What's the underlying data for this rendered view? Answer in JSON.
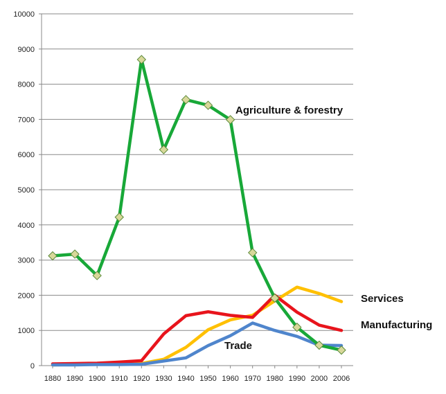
{
  "chart_data": {
    "type": "line",
    "title": "",
    "xlabel": "",
    "ylabel": "",
    "x": [
      "1880",
      "1890",
      "1900",
      "1910",
      "1920",
      "1930",
      "1940",
      "1950",
      "1960",
      "1970",
      "1980",
      "1990",
      "2000",
      "2006"
    ],
    "ylim": [
      0,
      10000
    ],
    "yticks": [
      0,
      1000,
      2000,
      3000,
      4000,
      5000,
      6000,
      7000,
      8000,
      9000,
      10000
    ],
    "grid": true,
    "series": [
      {
        "name": "Services",
        "color": "#FFC000",
        "markers": false,
        "values": [
          20,
          30,
          40,
          50,
          60,
          180,
          520,
          1020,
          1300,
          1430,
          1840,
          2230,
          2050,
          1820
        ]
      },
      {
        "name": "Manufacturing",
        "color": "#E8141C",
        "markers": false,
        "values": [
          50,
          60,
          70,
          100,
          140,
          900,
          1420,
          1530,
          1430,
          1370,
          2000,
          1520,
          1150,
          1000
        ]
      },
      {
        "name": "Trade",
        "color": "#4F85CC",
        "markers": false,
        "values": [
          20,
          20,
          30,
          30,
          40,
          130,
          220,
          570,
          850,
          1210,
          1000,
          830,
          580,
          570
        ]
      },
      {
        "name": "Agriculture & forestry",
        "color": "#18A838",
        "markers": true,
        "values": [
          3120,
          3170,
          2560,
          4220,
          8700,
          6140,
          7560,
          7400,
          6990,
          3210,
          1920,
          1090,
          580,
          440
        ]
      }
    ],
    "annotations": {
      "agriculture": "Agriculture & forestry",
      "services": "Services",
      "manufacturing": "Manufacturing",
      "trade": "Trade"
    }
  }
}
